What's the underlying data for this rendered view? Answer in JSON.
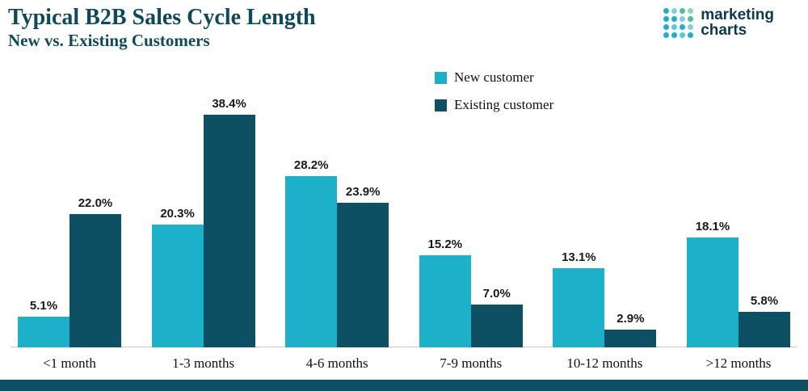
{
  "header": {
    "title": "Typical B2B Sales Cycle Length",
    "subtitle": "New vs. Existing Customers"
  },
  "logo": {
    "line1": "marketing",
    "line2": "charts",
    "text_color": "#0d3b4d",
    "dot_colors": [
      "#1cb0c9",
      "#7fd0dd",
      "#4bbf9a",
      "#8fd6c2",
      "#1cb0c9",
      "#1cb0c9",
      "#7fd0dd",
      "#4bbf9a",
      "#1cb0c9",
      "#5fc6d6",
      "#1cb0c9",
      "#7fd0dd",
      "#1cb0c9",
      "#1cb0c9",
      "#5fc6d6",
      "#1cb0c9"
    ]
  },
  "legend": {
    "items": [
      {
        "label": "New customer",
        "color": "#1cb0c9"
      },
      {
        "label": "Existing customer",
        "color": "#0d4f63"
      }
    ]
  },
  "chart_data": {
    "type": "bar",
    "title": "Typical B2B Sales Cycle Length",
    "subtitle": "New vs. Existing Customers",
    "categories": [
      "<1 month",
      "1-3 months",
      "4-6 months",
      "7-9 months",
      "10-12 months",
      ">12 months"
    ],
    "series": [
      {
        "name": "New customer",
        "color": "#1cb0c9",
        "values": [
          5.1,
          20.3,
          28.2,
          15.2,
          13.1,
          18.1
        ]
      },
      {
        "name": "Existing customer",
        "color": "#0d4f63",
        "values": [
          22.0,
          38.4,
          23.9,
          7.0,
          2.9,
          5.8
        ]
      }
    ],
    "value_suffix": "%",
    "xlabel": "",
    "ylabel": "",
    "ylim": [
      0,
      40
    ],
    "grid": false,
    "legend_position": "top-center"
  },
  "footer": {
    "color": "#0d4f63"
  }
}
